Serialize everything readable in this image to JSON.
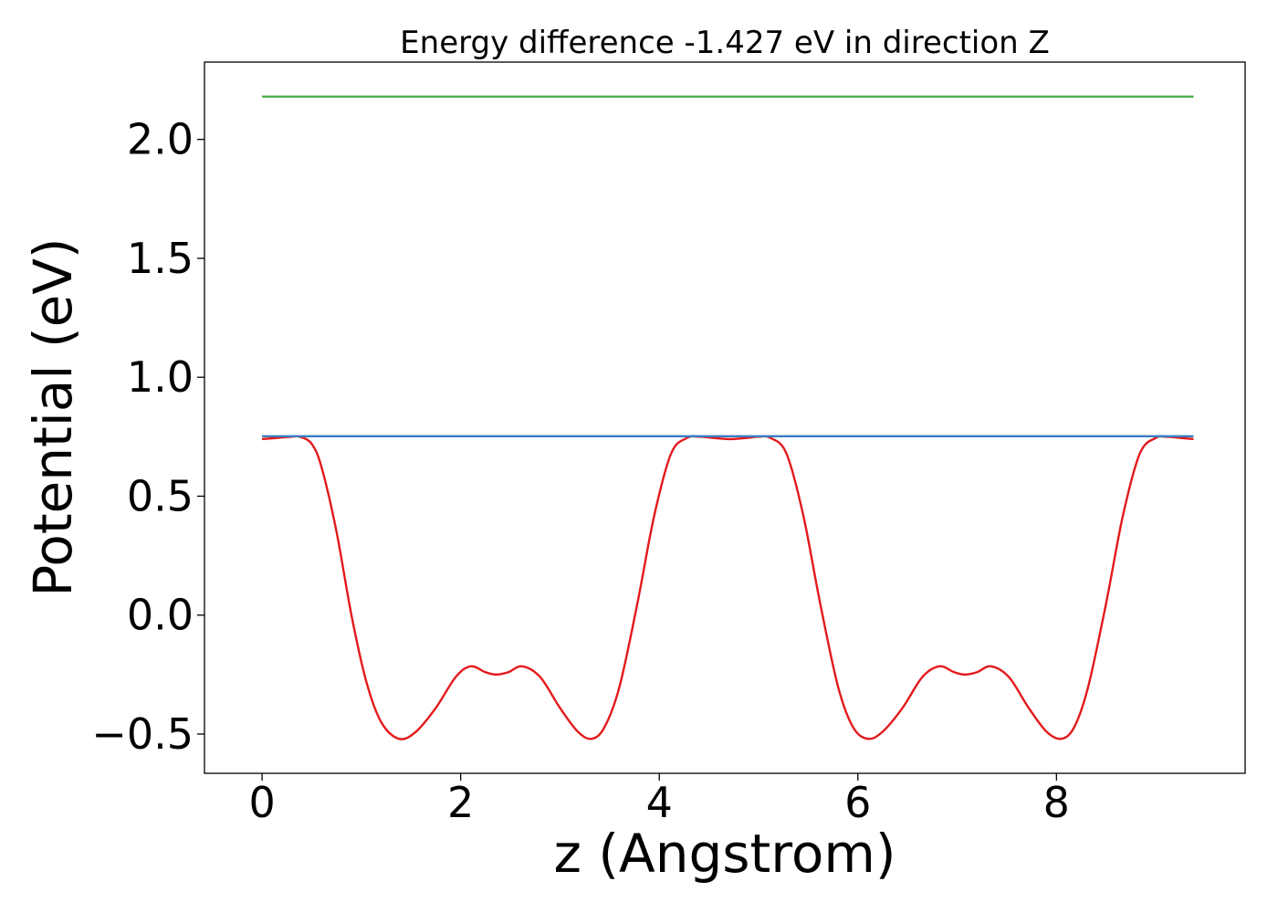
{
  "chart_data": {
    "type": "line",
    "title": "Energy difference -1.427 eV in direction Z",
    "xlabel": "z (Angstrom)",
    "ylabel": "Potential (eV)",
    "xlim": [
      -0.58,
      9.9
    ],
    "ylim": [
      -0.665,
      2.325
    ],
    "xticks": [
      0,
      2,
      4,
      6,
      8
    ],
    "xtick_labels": [
      "0",
      "2",
      "4",
      "6",
      "8"
    ],
    "yticks": [
      -0.5,
      0.0,
      0.5,
      1.0,
      1.5,
      2.0
    ],
    "ytick_labels": [
      "−0.5",
      "0.0",
      "0.5",
      "1.0",
      "1.5",
      "2.0"
    ],
    "grid": false,
    "colors": {
      "potential": "#e31a1c",
      "average": "#3a7dc0",
      "upper": "#4daf4a"
    },
    "series": [
      {
        "color": "#e31a1c",
        "x": [
          0,
          0.15,
          0.3,
          0.38,
          0.5,
          0.6,
          0.75,
          0.9,
          1.05,
          1.2,
          1.38,
          1.55,
          1.75,
          1.95,
          2.1,
          2.25,
          2.36,
          2.48,
          2.62,
          2.8,
          3.0,
          3.18,
          3.32,
          3.45,
          3.6,
          3.78,
          3.95,
          4.12,
          4.28,
          4.4,
          4.55,
          4.72,
          4.88,
          5.0,
          5.12,
          5.28,
          5.45,
          5.62,
          5.8,
          5.95,
          6.1,
          6.25,
          6.45,
          6.65,
          6.82,
          6.97,
          7.08,
          7.2,
          7.34,
          7.52,
          7.72,
          7.9,
          8.05,
          8.18,
          8.32,
          8.5,
          8.67,
          8.84,
          9.0,
          9.1,
          9.25,
          9.38
        ],
        "values": [
          0.74,
          0.745,
          0.75,
          0.75,
          0.72,
          0.62,
          0.35,
          0.0,
          -0.28,
          -0.45,
          -0.52,
          -0.49,
          -0.39,
          -0.26,
          -0.215,
          -0.24,
          -0.25,
          -0.24,
          -0.215,
          -0.26,
          -0.39,
          -0.49,
          -0.52,
          -0.47,
          -0.3,
          0.05,
          0.42,
          0.68,
          0.745,
          0.75,
          0.745,
          0.74,
          0.745,
          0.75,
          0.745,
          0.68,
          0.42,
          0.05,
          -0.3,
          -0.47,
          -0.52,
          -0.49,
          -0.39,
          -0.26,
          -0.215,
          -0.24,
          -0.25,
          -0.24,
          -0.215,
          -0.26,
          -0.39,
          -0.49,
          -0.52,
          -0.47,
          -0.3,
          0.05,
          0.42,
          0.68,
          0.745,
          0.75,
          0.745,
          0.74
        ]
      },
      {
        "color": "#3a7dc0",
        "x": [
          0,
          9.38
        ],
        "values": [
          0.752,
          0.752
        ]
      },
      {
        "color": "#4daf4a",
        "x": [
          0,
          9.38
        ],
        "values": [
          2.18,
          2.18
        ]
      }
    ]
  }
}
